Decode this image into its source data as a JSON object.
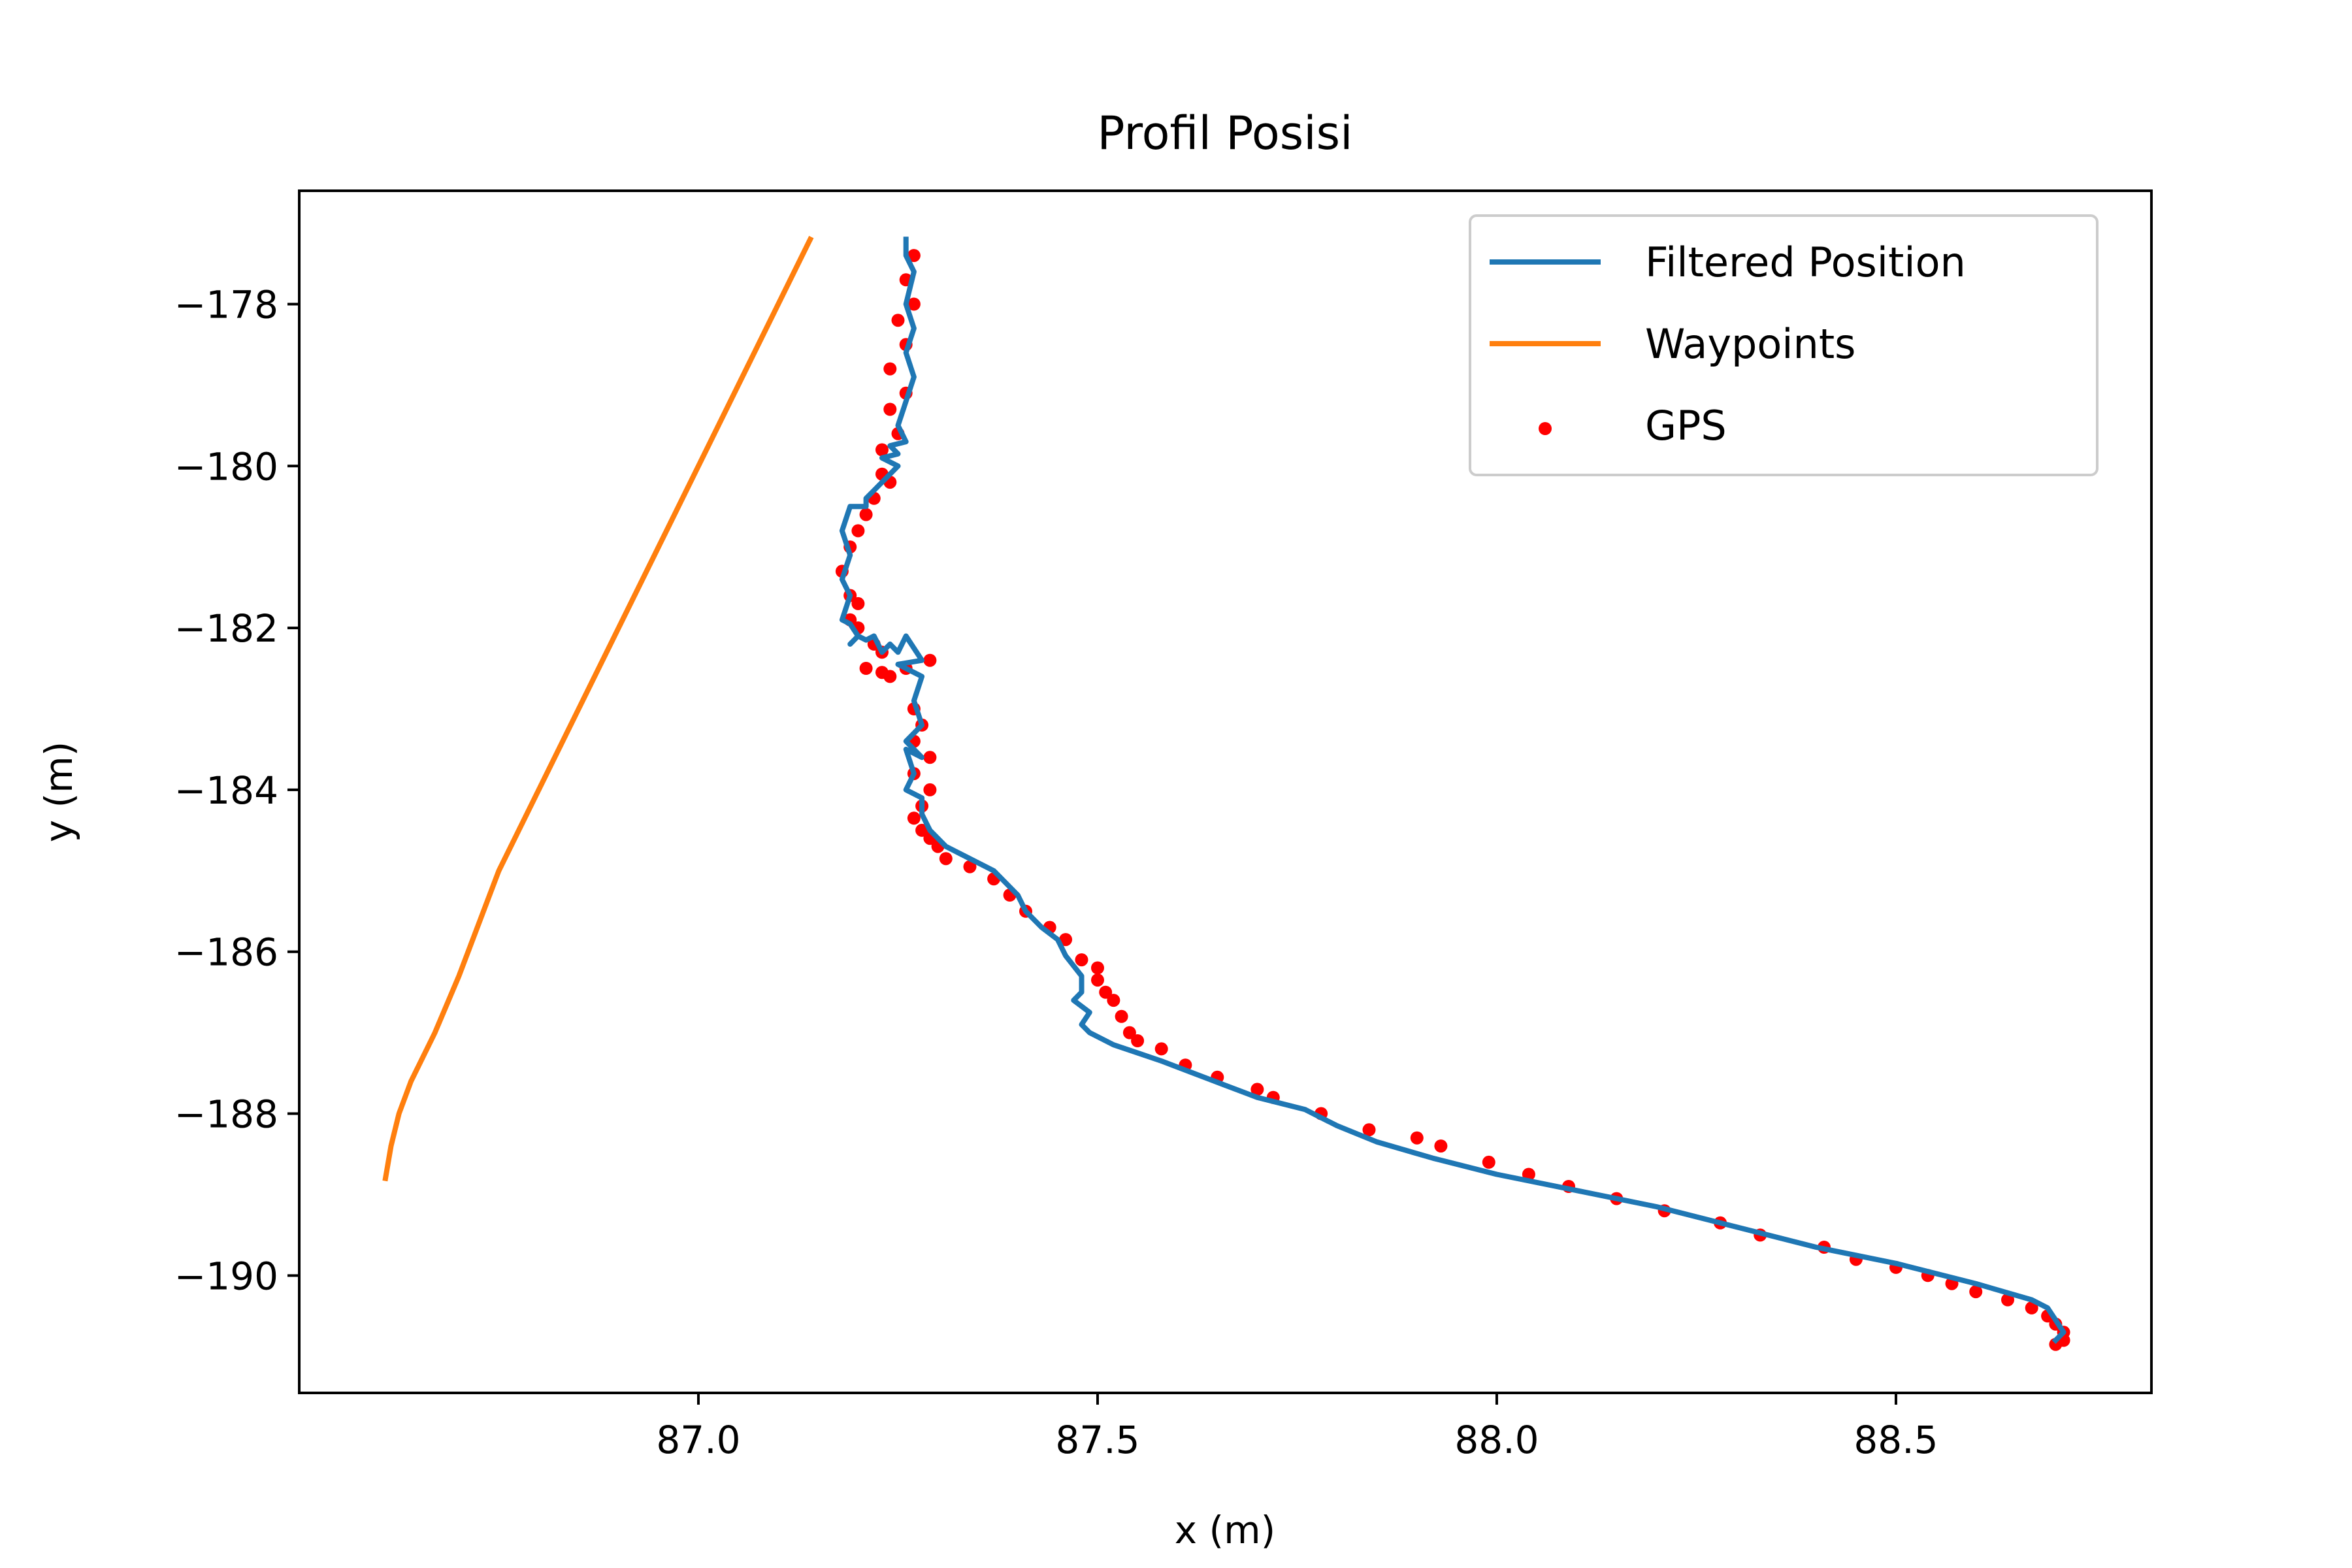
{
  "chart_data": {
    "type": "line",
    "title": "Profil Posisi",
    "xlabel": "x (m)",
    "ylabel": "y (m)",
    "xlim": [
      86.5,
      88.82
    ],
    "ylim": [
      -191.45,
      -176.6
    ],
    "xticks": [
      87.0,
      87.5,
      88.0,
      88.5
    ],
    "xtick_labels": [
      "87.0",
      "87.5",
      "88.0",
      "88.5"
    ],
    "yticks": [
      -178,
      -180,
      -182,
      -184,
      -186,
      -188,
      -190
    ],
    "ytick_labels": [
      "−178",
      "−180",
      "−182",
      "−184",
      "−186",
      "−188",
      "−190"
    ],
    "grid": false,
    "legend_position": "top-right",
    "series": [
      {
        "name": "Filtered Position",
        "kind": "line",
        "color": "#1f77b4",
        "x": [
          87.26,
          87.26,
          87.27,
          87.26,
          87.27,
          87.26,
          87.27,
          87.26,
          87.25,
          87.26,
          87.24,
          87.25,
          87.23,
          87.25,
          87.22,
          87.21,
          87.21,
          87.19,
          87.18,
          87.19,
          87.18,
          87.19,
          87.18,
          87.19,
          87.2,
          87.19,
          87.2,
          87.21,
          87.22,
          87.23,
          87.24,
          87.25,
          87.26,
          87.28,
          87.25,
          87.28,
          87.27,
          87.28,
          87.26,
          87.28,
          87.26,
          87.27,
          87.26,
          87.28,
          87.28,
          87.29,
          87.31,
          87.33,
          87.37,
          87.4,
          87.41,
          87.43,
          87.45,
          87.46,
          87.48,
          87.48,
          87.47,
          87.49,
          87.48,
          87.49,
          87.52,
          87.55,
          87.58,
          87.62,
          87.66,
          87.7,
          87.76,
          87.8,
          87.85,
          87.92,
          88.0,
          88.1,
          88.2,
          88.3,
          88.4,
          88.5,
          88.6,
          88.67,
          88.69,
          88.7,
          88.71,
          88.7
        ],
        "y": [
          -177.2,
          -177.4,
          -177.6,
          -178.0,
          -178.3,
          -178.6,
          -178.9,
          -179.2,
          -179.5,
          -179.7,
          -179.75,
          -179.85,
          -179.9,
          -180.0,
          -180.3,
          -180.4,
          -180.5,
          -180.5,
          -180.8,
          -181.1,
          -181.4,
          -181.6,
          -181.9,
          -181.95,
          -182.1,
          -182.2,
          -182.1,
          -182.15,
          -182.1,
          -182.3,
          -182.2,
          -182.3,
          -182.1,
          -182.4,
          -182.45,
          -182.6,
          -182.9,
          -183.2,
          -183.4,
          -183.6,
          -183.5,
          -183.8,
          -184.0,
          -184.1,
          -184.3,
          -184.5,
          -184.7,
          -184.8,
          -185.0,
          -185.3,
          -185.5,
          -185.7,
          -185.85,
          -186.05,
          -186.3,
          -186.5,
          -186.6,
          -186.75,
          -186.9,
          -187.0,
          -187.15,
          -187.25,
          -187.35,
          -187.5,
          -187.65,
          -187.8,
          -187.95,
          -188.15,
          -188.35,
          -188.55,
          -188.75,
          -188.95,
          -189.15,
          -189.4,
          -189.65,
          -189.85,
          -190.1,
          -190.3,
          -190.4,
          -190.55,
          -190.7,
          -190.8
        ]
      },
      {
        "name": "Waypoints",
        "kind": "line",
        "color": "#ff7f0e",
        "x": [
          87.14,
          87.05,
          86.95,
          86.85,
          86.75,
          86.7,
          86.67,
          86.64,
          86.625,
          86.615,
          86.608
        ],
        "y": [
          -177.2,
          -179.0,
          -181.0,
          -183.0,
          -185.0,
          -186.3,
          -187.0,
          -187.6,
          -188.0,
          -188.4,
          -188.8
        ]
      },
      {
        "name": "GPS",
        "kind": "scatter",
        "color": "#ff0000",
        "x": [
          87.27,
          87.26,
          87.27,
          87.25,
          87.26,
          87.24,
          87.26,
          87.24,
          87.25,
          87.23,
          87.24,
          87.22,
          87.21,
          87.23,
          87.2,
          87.19,
          87.18,
          87.19,
          87.2,
          87.19,
          87.2,
          87.22,
          87.21,
          87.23,
          87.24,
          87.26,
          87.23,
          87.29,
          87.27,
          87.28,
          87.27,
          87.29,
          87.27,
          87.29,
          87.28,
          87.27,
          87.28,
          87.29,
          87.3,
          87.31,
          87.34,
          87.37,
          87.39,
          87.41,
          87.44,
          87.46,
          87.48,
          87.5,
          87.5,
          87.51,
          87.52,
          87.53,
          87.54,
          87.55,
          87.58,
          87.61,
          87.65,
          87.7,
          87.72,
          87.78,
          87.84,
          87.9,
          87.93,
          87.99,
          88.04,
          88.09,
          88.15,
          88.21,
          88.28,
          88.33,
          88.41,
          88.45,
          88.5,
          88.54,
          88.57,
          88.6,
          88.64,
          88.67,
          88.69,
          88.7,
          88.71,
          88.71,
          88.7
        ],
        "y": [
          -177.4,
          -177.7,
          -178.0,
          -178.2,
          -178.5,
          -178.8,
          -179.1,
          -179.3,
          -179.6,
          -179.8,
          -180.2,
          -180.4,
          -180.6,
          -180.1,
          -180.8,
          -181.0,
          -181.3,
          -181.6,
          -181.7,
          -181.9,
          -182.0,
          -182.2,
          -182.5,
          -182.3,
          -182.6,
          -182.5,
          -182.55,
          -182.4,
          -183.0,
          -183.2,
          -183.4,
          -183.6,
          -183.8,
          -184.0,
          -184.2,
          -184.35,
          -184.5,
          -184.6,
          -184.7,
          -184.85,
          -184.95,
          -185.1,
          -185.3,
          -185.5,
          -185.7,
          -185.85,
          -186.1,
          -186.2,
          -186.35,
          -186.5,
          -186.6,
          -186.8,
          -187.0,
          -187.1,
          -187.2,
          -187.4,
          -187.55,
          -187.7,
          -187.8,
          -188.0,
          -188.2,
          -188.3,
          -188.4,
          -188.6,
          -188.75,
          -188.9,
          -189.05,
          -189.2,
          -189.35,
          -189.5,
          -189.65,
          -189.8,
          -189.9,
          -190.0,
          -190.1,
          -190.2,
          -190.3,
          -190.4,
          -190.5,
          -190.6,
          -190.7,
          -190.8,
          -190.85
        ]
      }
    ]
  }
}
